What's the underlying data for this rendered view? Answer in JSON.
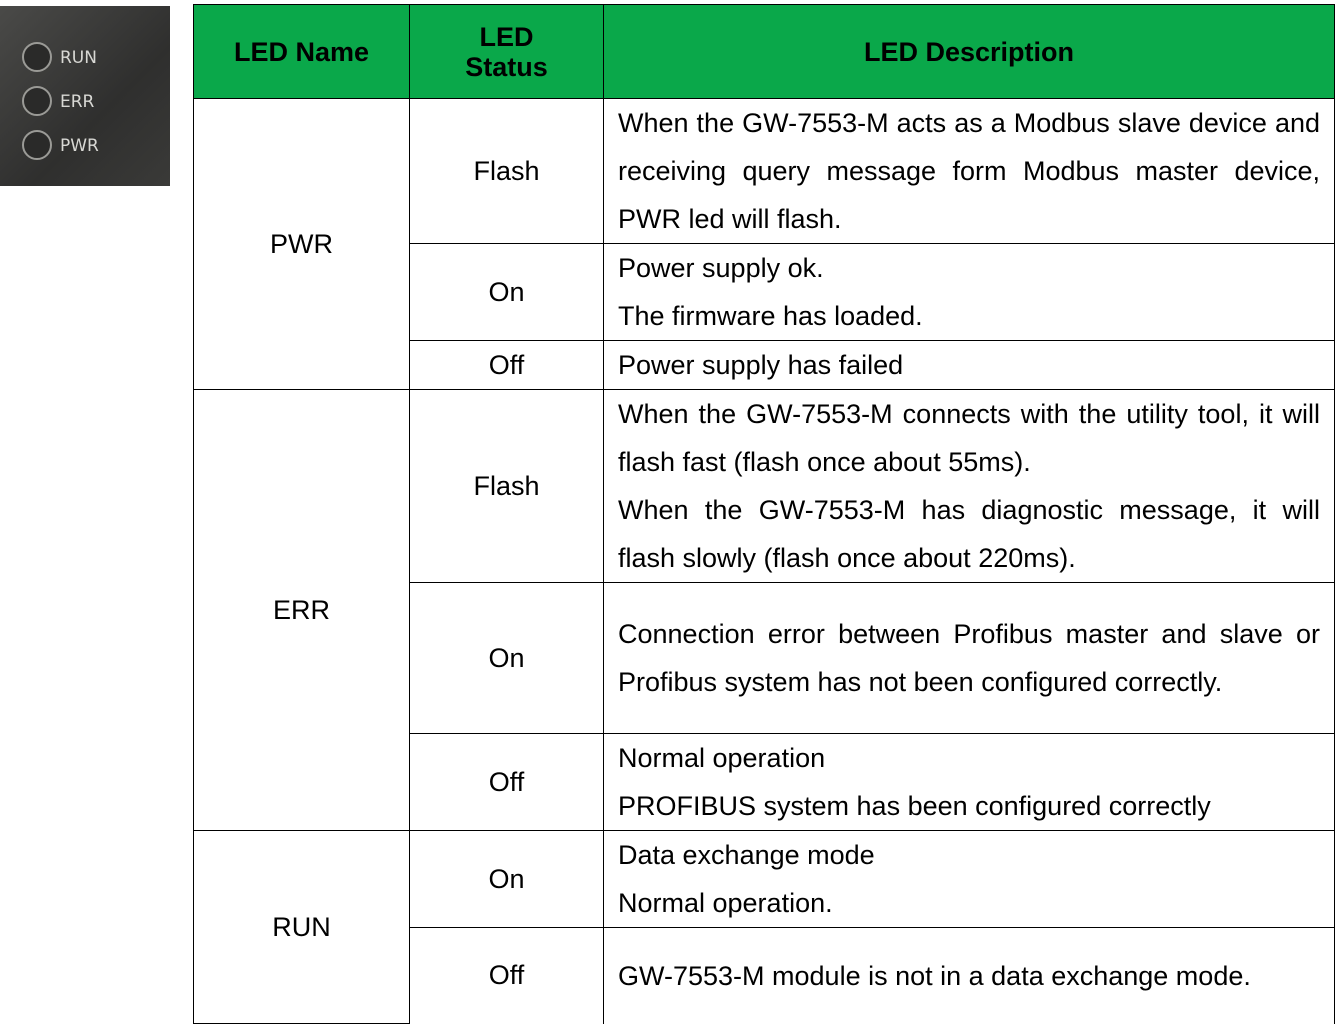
{
  "led_panel": {
    "labels": [
      "RUN",
      "ERR",
      "PWR"
    ]
  },
  "table": {
    "headers": [
      "LED Name",
      "LED Status",
      "LED Description"
    ],
    "groups": [
      {
        "name": "PWR",
        "rows": [
          {
            "status": "Flash",
            "description": [
              "When the GW-7553-M acts as a Modbus slave device and receiving query message form Modbus master device, PWR led will flash."
            ]
          },
          {
            "status": "On",
            "description": [
              "Power supply ok.",
              "The firmware has loaded."
            ]
          },
          {
            "status": "Off",
            "description": [
              "Power supply has failed"
            ]
          }
        ]
      },
      {
        "name": "ERR",
        "rows": [
          {
            "status": "Flash",
            "description": [
              "When the GW-7553-M connects with the utility tool, it will flash fast (flash once about 55ms).",
              "When the GW-7553-M has diagnostic message, it will flash slowly (flash once about 220ms)."
            ]
          },
          {
            "status": "On",
            "description": [
              "Connection error between Profibus master and slave or Profibus system has not been configured correctly."
            ]
          },
          {
            "status": "Off",
            "description": [
              "Normal operation",
              "PROFIBUS system has been configured correctly"
            ]
          }
        ]
      },
      {
        "name": "RUN",
        "rows": [
          {
            "status": "On",
            "description": [
              "Data exchange mode",
              "Normal operation."
            ]
          },
          {
            "status": "Off",
            "description": [
              "GW-7553-M module is not in a data exchange mode."
            ]
          }
        ]
      }
    ]
  }
}
